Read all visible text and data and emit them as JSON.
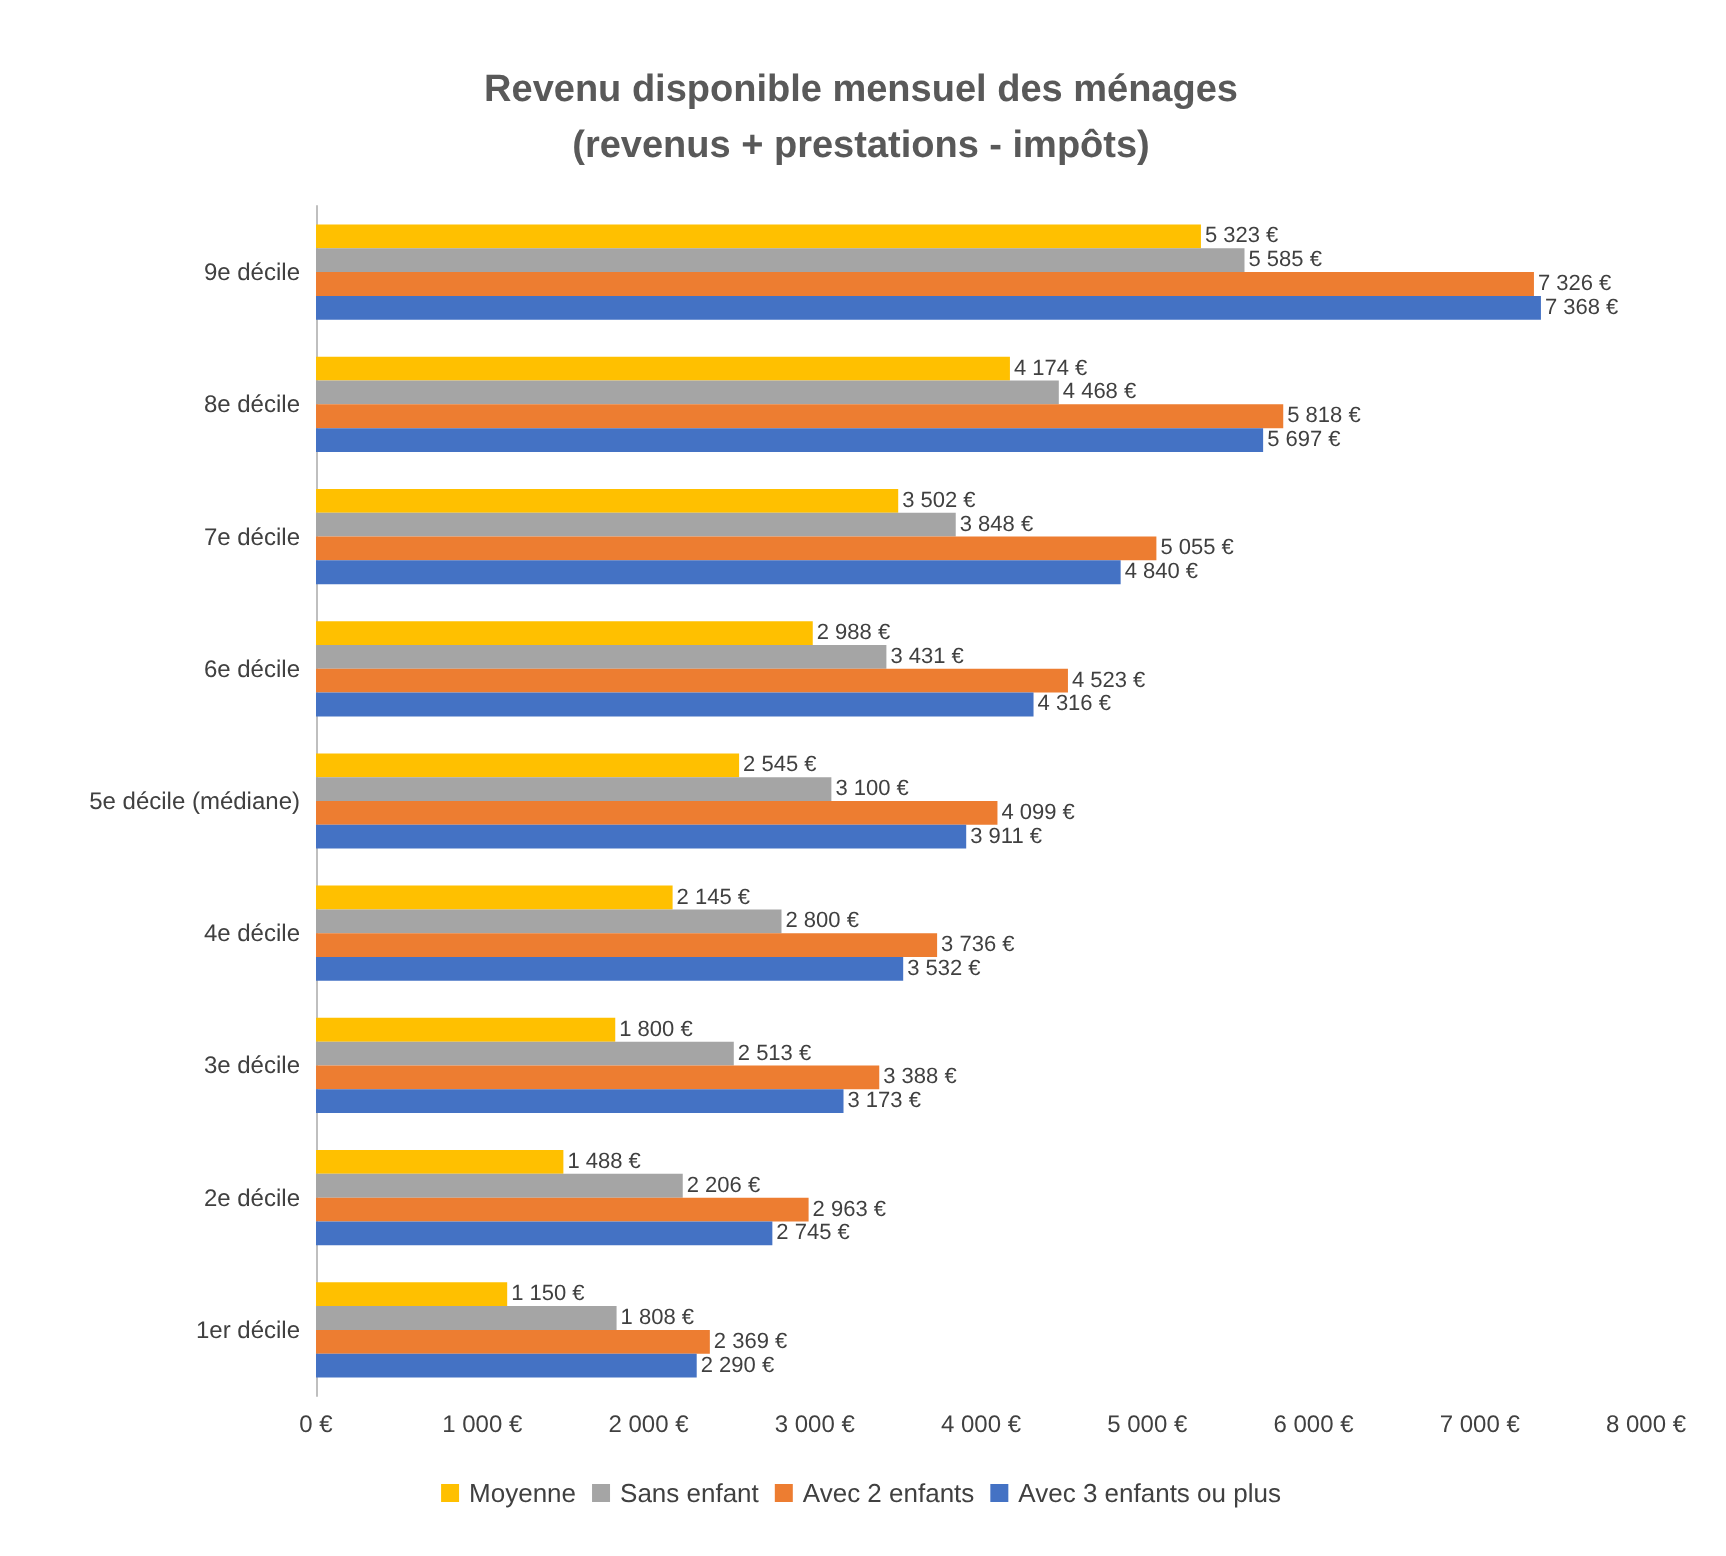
{
  "chart_data": {
    "type": "bar",
    "orientation": "horizontal",
    "title": "Revenu disponible mensuel des ménages\n(revenus + prestations - impôts)",
    "categories": [
      "9e décile",
      "8e décile",
      "7e décile",
      "6e décile",
      "5e décile (médiane)",
      "4e décile",
      "3e décile",
      "2e décile",
      "1er décile"
    ],
    "series": [
      {
        "name": "Moyenne",
        "color": "#ffc000",
        "values": [
          5323,
          4174,
          3502,
          2988,
          2545,
          2145,
          1800,
          1488,
          1150
        ],
        "value_labels": [
          "5 323 €",
          "4 174 €",
          "3 502 €",
          "2 988 €",
          "2 545 €",
          "2 145 €",
          "1 800 €",
          "1 488 €",
          "1 150 €"
        ]
      },
      {
        "name": "Sans enfant",
        "color": "#a5a5a5",
        "values": [
          5585,
          4468,
          3848,
          3431,
          3100,
          2800,
          2513,
          2206,
          1808
        ],
        "value_labels": [
          "5 585 €",
          "4 468 €",
          "3 848 €",
          "3 431 €",
          "3 100 €",
          "2 800 €",
          "2 513 €",
          "2 206 €",
          "1 808 €"
        ]
      },
      {
        "name": "Avec 2 enfants",
        "color": "#ed7d31",
        "values": [
          7326,
          5818,
          5055,
          4523,
          4099,
          3736,
          3388,
          2963,
          2369
        ],
        "value_labels": [
          "7 326 €",
          "5 818 €",
          "5 055 €",
          "4 523 €",
          "4 099 €",
          "3 736 €",
          "3 388 €",
          "2 963 €",
          "2 369 €"
        ]
      },
      {
        "name": "Avec 3 enfants ou plus",
        "color": "#4472c4",
        "values": [
          7368,
          5697,
          4840,
          4316,
          3911,
          3532,
          3173,
          2745,
          2290
        ],
        "value_labels": [
          "7 368 €",
          "5 697 €",
          "4 840 €",
          "4 316 €",
          "3 911 €",
          "3 532 €",
          "3 173 €",
          "2 745 €",
          "2 290 €"
        ]
      }
    ],
    "xlim": [
      0,
      8000
    ],
    "xticks": [
      {
        "value": 0,
        "label": "0 €"
      },
      {
        "value": 1000,
        "label": "1 000 €"
      },
      {
        "value": 2000,
        "label": "2 000 €"
      },
      {
        "value": 3000,
        "label": "3 000 €"
      },
      {
        "value": 4000,
        "label": "4 000 €"
      },
      {
        "value": 5000,
        "label": "5 000 €"
      },
      {
        "value": 6000,
        "label": "6 000 €"
      },
      {
        "value": 7000,
        "label": "7 000 €"
      },
      {
        "value": 8000,
        "label": "8 000 €"
      }
    ],
    "grid": false,
    "legend": "bottom"
  }
}
